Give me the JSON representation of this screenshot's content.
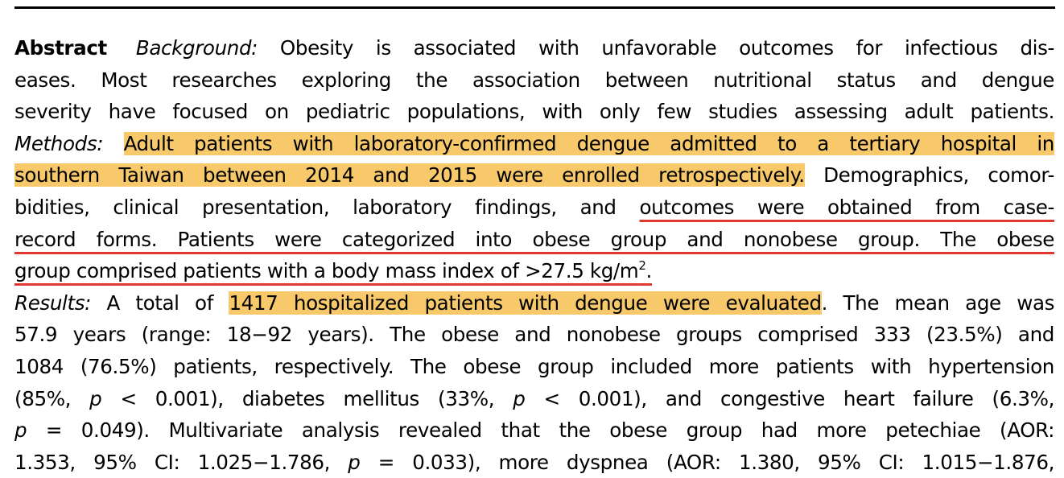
{
  "abstract": {
    "label": "Abstract",
    "background": {
      "heading": "Background:",
      "text": "Obesity is associated with unfavorable outcomes for infectious diseases. Most researches exploring the association between nutritional status and dengue severity have focused on pediatric populations, with only few studies assessing adult patients."
    },
    "methods": {
      "heading": "Methods:",
      "highlighted": "Adult patients with laboratory-confirmed dengue admitted to a tertiary hospital in southern Taiwan between 2014 and 2015 were enrolled retrospectively.",
      "plain": "Demographics, comorbidities, clinical presentation, laboratory findings, and",
      "underlined": "outcomes were obtained from case-record forms. Patients were categorized into obese group and nonobese group. The obese group comprised patients with a body mass index of >27.5 kg/m2."
    },
    "results": {
      "heading": "Results:",
      "intro": "A total of",
      "highlighted": "1417 hospitalized patients with dengue were evaluated",
      "text": ". The mean age was 57.9 years (range: 18−92 years). The obese and nonobese groups comprised 333 (23.5%) and 1084 (76.5%) patients, respectively. The obese group included more patients with hypertension (85%, p < 0.001), diabetes mellitus (33%, p < 0.001), and congestive heart failure (6.3%, p = 0.049). Multivariate analysis revealed that the obese group had more petechiae (AOR: 1.353, 95% CI: 1.025−1.786, p = 0.033), more dyspnea (AOR: 1.380, 95% CI: 1.015−1.876,"
    },
    "lines": [
      [
        "Background:",
        "Obesity is associated with unfavorable outcomes for infectious dis-"
      ],
      "eases. Most researches exploring the association between nutritional status and dengue",
      "severity have focused on pediatric populations, with only few studies assessing adult patients.",
      [
        "Adult patients with laboratory-confirmed dengue admitted to a tertiary hospital in"
      ],
      [
        "southern Taiwan between 2014 and 2015 were enrolled retrospectively.",
        "Demographics, comor-"
      ],
      [
        "bidities, clinical presentation, laboratory findings, and",
        "outcomes were obtained from case-"
      ],
      "record forms. Patients were categorized into obese group and nonobese group. The obese",
      [
        "group comprised patients with a body mass index of >27.5 kg/m",
        "2",
        "."
      ],
      [
        "A total of",
        "1417 hospitalized patients with dengue were evaluated",
        ". The mean age was"
      ],
      "57.9 years (range: 18−92 years). The obese and nonobese groups comprised 333 (23.5%) and",
      "1084 (76.5%) patients, respectively. The obese group included more patients with hypertension",
      [
        "(85%,",
        "p",
        "< 0.001), diabetes mellitus (33%,",
        "p",
        "< 0.001), and congestive heart failure (6.3%,"
      ],
      [
        "p",
        "= 0.049). Multivariate analysis revealed that the obese group had more petechiae (AOR:"
      ],
      [
        "1.353, 95% CI: 1.025−1.786,",
        "p",
        "= 0.033), more dyspnea (AOR: 1.380, 95% CI: 1.015−1.876,"
      ]
    ]
  },
  "colors": {
    "highlight": "#f7c96a",
    "underline": "#e0382e"
  }
}
